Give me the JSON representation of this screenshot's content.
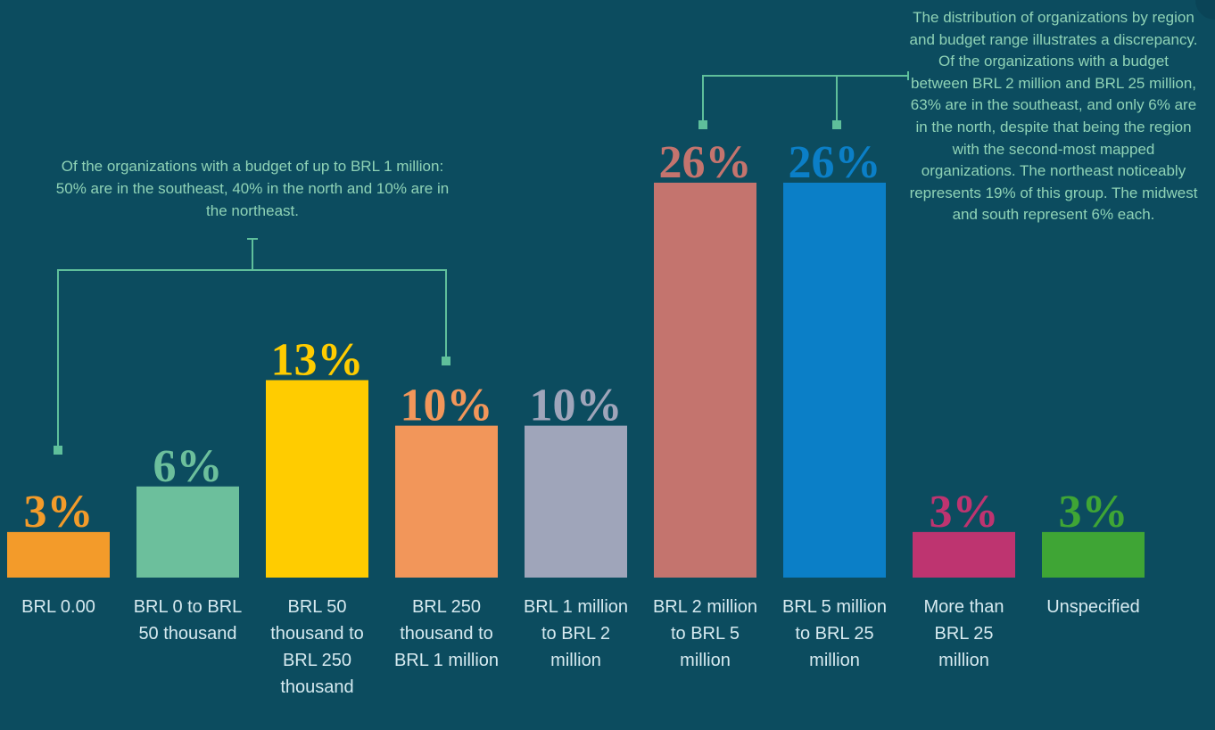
{
  "chart_data": {
    "type": "bar",
    "categories": [
      "BRL 0.00",
      "BRL 0 to BRL 50 thousand",
      "BRL 50 thousand to BRL 250 thousand",
      "BRL 250 thousand to BRL 1 million",
      "BRL 1 million to BRL 2 million",
      "BRL 2 million to BRL 5 million",
      "BRL 5 million to BRL 25 million",
      "More than BRL 25 million",
      "Unspecified"
    ],
    "values": [
      3,
      6,
      13,
      10,
      10,
      26,
      26,
      3,
      3
    ],
    "value_labels": [
      "3%",
      "6%",
      "13%",
      "10%",
      "10%",
      "26%",
      "26%",
      "3%",
      "3%"
    ],
    "colors": [
      "#f39b2a",
      "#6cbf9c",
      "#ffcc00",
      "#f2965a",
      "#9fa5ba",
      "#c4746e",
      "#0b7fc7",
      "#be3470",
      "#3fa535"
    ],
    "annotations": [
      "Of the organizations with a budget of up to BRL 1 million: 50% are in the southeast, 40% in the north and 10% are in the northeast.",
      "The distribution of organizations by region and budget range illustrates a discrepancy. Of the organizations with a budget between BRL 2 million and BRL 25 million, 63% are in the southeast, and only 6% are in the north, despite that being the region with the second-most mapped organizations. The northeast noticeably represents 19% of this group. The midwest and south represent 6% each."
    ]
  }
}
